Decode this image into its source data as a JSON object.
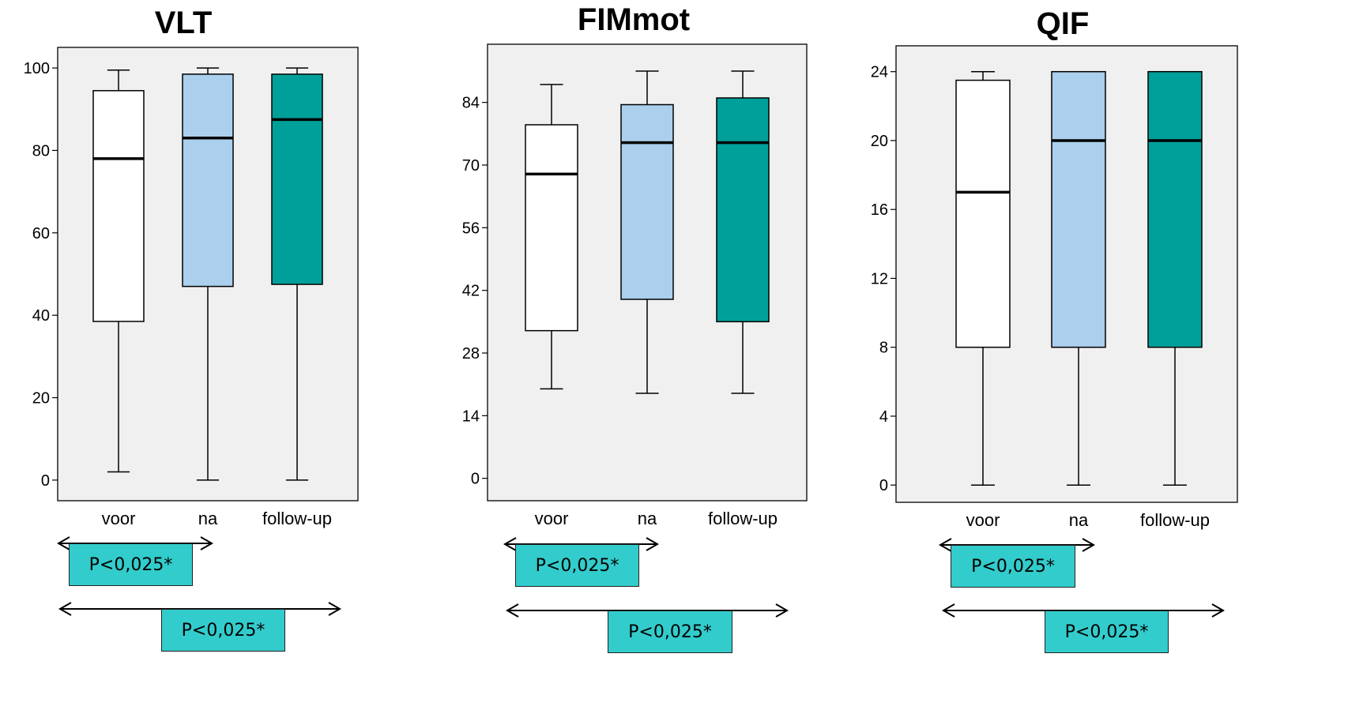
{
  "colors": {
    "panel_bg": "#f0f0f0",
    "box_voor": "#ffffff",
    "box_na": "#abcfed",
    "box_followup": "#00a09a",
    "significance_box": "#33cccc",
    "line": "#000000"
  },
  "chart_data": [
    {
      "type": "boxplot",
      "title": "VLT",
      "categories": [
        "voor",
        "na",
        "follow-up"
      ],
      "ylim": [
        -5,
        105
      ],
      "yticks": [
        0,
        20,
        40,
        60,
        80,
        100
      ],
      "boxes": [
        {
          "category": "voor",
          "min": 2,
          "q1": 38.5,
          "median": 78,
          "q3": 94.5,
          "max": 99.5
        },
        {
          "category": "na",
          "min": 0,
          "q1": 47,
          "median": 83,
          "q3": 98.5,
          "max": 100
        },
        {
          "category": "follow-up",
          "min": 0,
          "q1": 47.5,
          "median": 87.5,
          "q3": 98.5,
          "max": 100
        }
      ],
      "comparisons": [
        {
          "from": "voor",
          "to": "na",
          "label": "P<0,025*"
        },
        {
          "from": "voor",
          "to": "follow-up",
          "label": "P<0,025*"
        }
      ]
    },
    {
      "type": "boxplot",
      "title": "FIMmot",
      "categories": [
        "voor",
        "na",
        "follow-up"
      ],
      "ylim": [
        -5,
        97
      ],
      "yticks": [
        0,
        14,
        28,
        42,
        56,
        70,
        84
      ],
      "boxes": [
        {
          "category": "voor",
          "min": 20,
          "q1": 33,
          "median": 68,
          "q3": 79,
          "max": 88
        },
        {
          "category": "na",
          "min": 19,
          "q1": 40,
          "median": 75,
          "q3": 83.5,
          "max": 91
        },
        {
          "category": "follow-up",
          "min": 19,
          "q1": 35,
          "median": 75,
          "q3": 85,
          "max": 91
        }
      ],
      "comparisons": [
        {
          "from": "voor",
          "to": "na",
          "label": "P<0,025*"
        },
        {
          "from": "voor",
          "to": "follow-up",
          "label": "P<0,025*"
        }
      ]
    },
    {
      "type": "boxplot",
      "title": "QIF",
      "categories": [
        "voor",
        "na",
        "follow-up"
      ],
      "ylim": [
        -1,
        25.5
      ],
      "yticks": [
        0,
        4,
        8,
        12,
        16,
        20,
        24
      ],
      "boxes": [
        {
          "category": "voor",
          "min": 0,
          "q1": 8,
          "median": 17,
          "q3": 23.5,
          "max": 24
        },
        {
          "category": "na",
          "min": 0,
          "q1": 8,
          "median": 20,
          "q3": 24,
          "max": 24
        },
        {
          "category": "follow-up",
          "min": 0,
          "q1": 8,
          "median": 20,
          "q3": 24,
          "max": 24
        }
      ],
      "comparisons": [
        {
          "from": "voor",
          "to": "na",
          "label": "P<0,025*"
        },
        {
          "from": "voor",
          "to": "follow-up",
          "label": "P<0,025*"
        }
      ]
    }
  ]
}
